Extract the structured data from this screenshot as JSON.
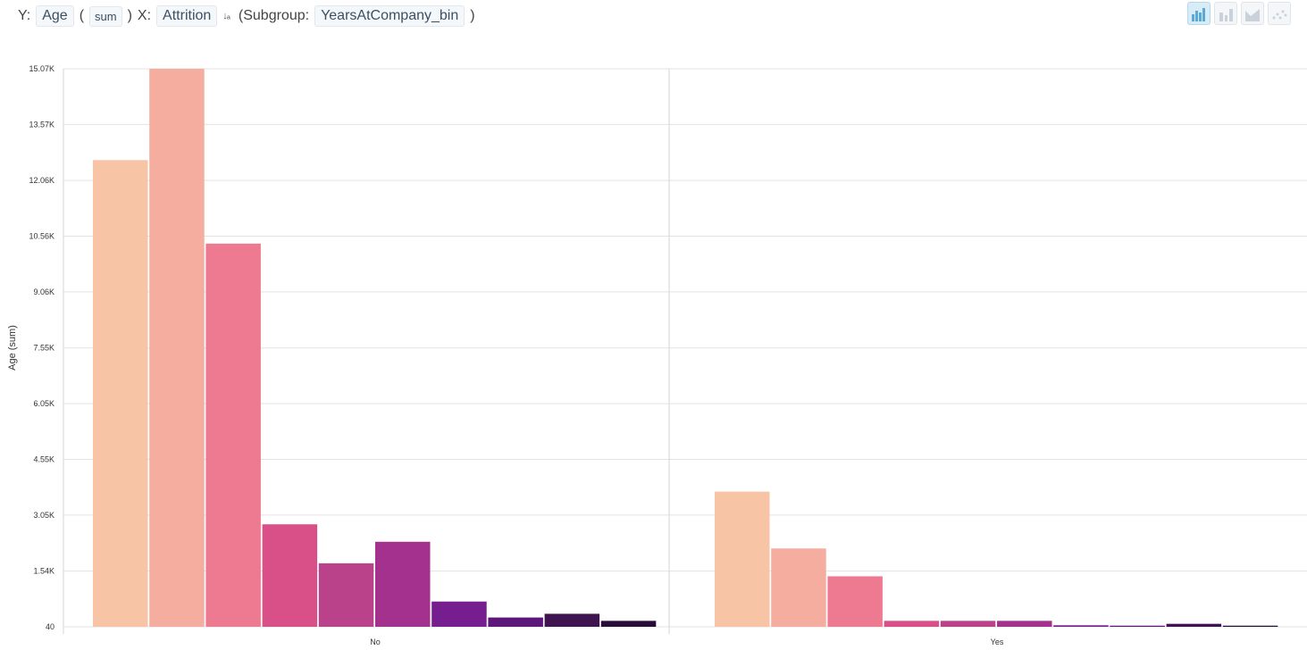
{
  "toolbar": {
    "y_label": "Y:",
    "y_field": "Age",
    "paren_open": "(",
    "aggregation": "sum",
    "paren_close": ")",
    "x_label": "X:",
    "x_field": "Attrition",
    "sort_icon": "sort-ascending-icon",
    "subgroup_label": "(Subgroup:",
    "subgroup_field": "YearsAtCompany_bin",
    "subgroup_close": ")"
  },
  "chart_type_buttons": [
    {
      "name": "grouped-bar-chart-icon",
      "active": true
    },
    {
      "name": "stacked-bar-chart-icon",
      "active": false
    },
    {
      "name": "area-chart-icon",
      "active": false
    },
    {
      "name": "scatter-chart-icon",
      "active": false
    }
  ],
  "chart_data": {
    "type": "bar",
    "grouped": true,
    "title": "",
    "xlabel": "",
    "ylabel": "Age (sum)",
    "categories": [
      "No",
      "Yes"
    ],
    "ylim": [
      40,
      15070
    ],
    "yticks": [
      40,
      1540,
      3050,
      4550,
      6050,
      7550,
      9060,
      10560,
      12060,
      13570,
      15070
    ],
    "ytick_labels": [
      "40",
      "1.54K",
      "3.05K",
      "4.55K",
      "6.05K",
      "7.55K",
      "9.06K",
      "10.56K",
      "12.06K",
      "13.57K",
      "15.07K"
    ],
    "grid": true,
    "legend": "none",
    "series": [
      {
        "color": "#f7c4a5",
        "values": [
          12610,
          3680
        ]
      },
      {
        "color": "#f5ad9f",
        "values": [
          15070,
          2150
        ]
      },
      {
        "color": "#ed7a90",
        "values": [
          10360,
          1400
        ]
      },
      {
        "color": "#d95088",
        "values": [
          2800,
          200
        ]
      },
      {
        "color": "#b9428a",
        "values": [
          1750,
          200
        ]
      },
      {
        "color": "#a3318d",
        "values": [
          2330,
          200
        ]
      },
      {
        "color": "#761d8f",
        "values": [
          720,
          80
        ]
      },
      {
        "color": "#5d1679",
        "values": [
          290,
          70
        ]
      },
      {
        "color": "#3f1350",
        "values": [
          390,
          120
        ]
      },
      {
        "color": "#2a0b3a",
        "values": [
          200,
          70
        ]
      }
    ]
  }
}
